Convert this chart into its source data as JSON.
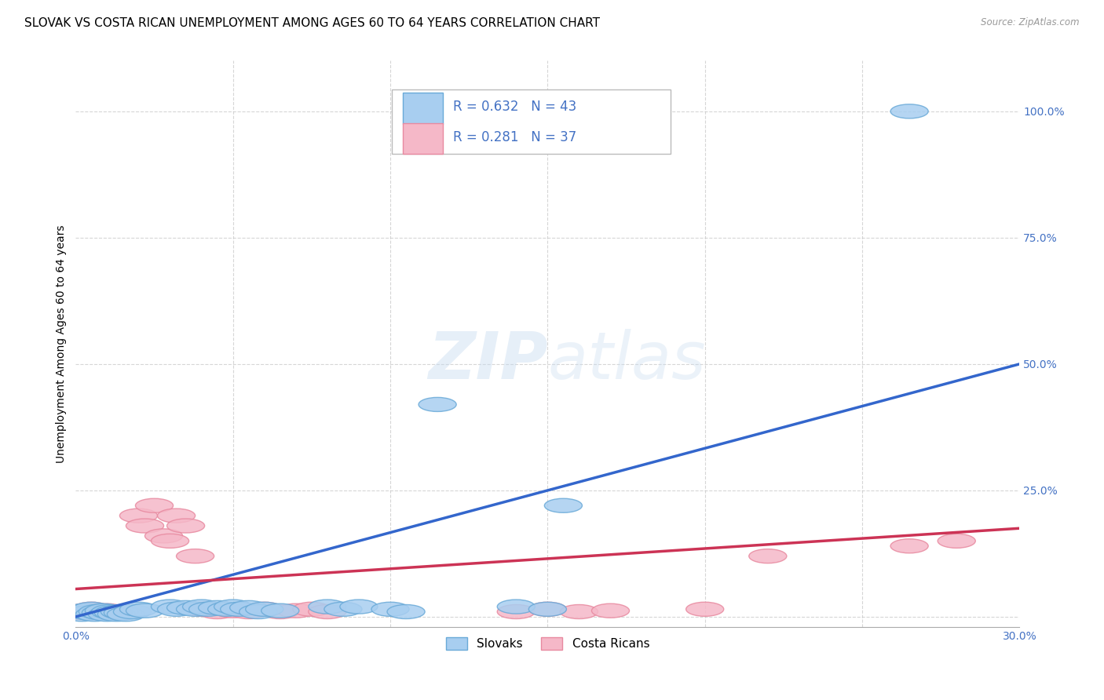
{
  "title": "SLOVAK VS COSTA RICAN UNEMPLOYMENT AMONG AGES 60 TO 64 YEARS CORRELATION CHART",
  "source": "Source: ZipAtlas.com",
  "ylabel": "Unemployment Among Ages 60 to 64 years",
  "xlim": [
    0.0,
    0.3
  ],
  "ylim": [
    -0.02,
    1.1
  ],
  "ytick_positions": [
    0.0,
    0.25,
    0.5,
    0.75,
    1.0
  ],
  "ytick_labels": [
    "",
    "25.0%",
    "50.0%",
    "75.0%",
    "100.0%"
  ],
  "slovak_color": "#A8CEF0",
  "slovak_edge_color": "#6AAAD8",
  "costa_rican_color": "#F5B8C8",
  "costa_rican_edge_color": "#E88AA0",
  "trend_slovak_color": "#3366CC",
  "trend_costa_rican_color": "#CC3355",
  "legend_text_color": "#4472C4",
  "watermark": "ZIPatlas",
  "R_slovak": 0.632,
  "N_slovak": 43,
  "R_costa": 0.281,
  "N_costa": 37,
  "sk_trend_x0": 0.0,
  "sk_trend_y0": 0.0,
  "sk_trend_x1": 0.3,
  "sk_trend_y1": 0.5,
  "cr_trend_x0": 0.0,
  "cr_trend_y0": 0.055,
  "cr_trend_x1": 0.3,
  "cr_trend_y1": 0.175,
  "grid_color": "#CCCCCC",
  "background_color": "#FFFFFF",
  "title_fontsize": 11,
  "axis_label_fontsize": 10,
  "tick_fontsize": 10
}
